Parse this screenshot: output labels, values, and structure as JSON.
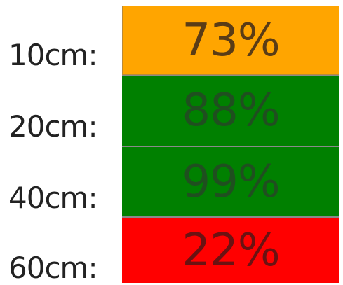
{
  "rows": [
    {
      "label": "10cm:",
      "value": "73%",
      "bg": "#FFA500",
      "text_color": "#5a3c16"
    },
    {
      "label": "20cm:",
      "value": "88%",
      "bg": "#008000",
      "text_color": "#1f4f1f"
    },
    {
      "label": "40cm:",
      "value": "99%",
      "bg": "#008000",
      "text_color": "#1f4f1f"
    },
    {
      "label": "60cm:",
      "value": "22%",
      "bg": "#FF0000",
      "text_color": "#6b1212"
    }
  ]
}
